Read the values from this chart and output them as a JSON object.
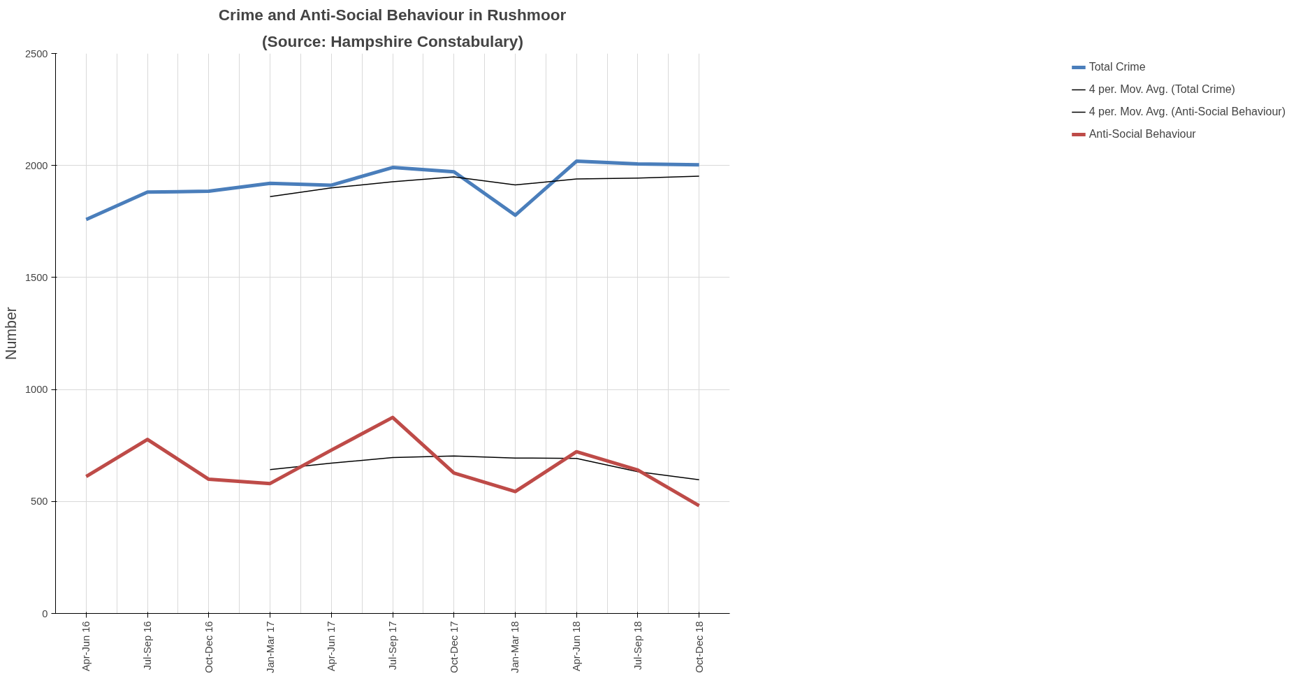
{
  "chart_data": {
    "type": "line",
    "title": "Crime and Anti-Social Behaviour in Rushmoor",
    "subtitle": "(Source: Hampshire Constabulary)",
    "ylabel": "Number",
    "categories": [
      "Apr-Jun 16",
      "Jul-Sep 16",
      "Oct-Dec 16",
      "Jan-Mar 17",
      "Apr-Jun 17",
      "Jul-Sep 17",
      "Oct-Dec 17",
      "Jan-Mar 18",
      "Apr-Jun 18",
      "Jul-Sep 18",
      "Oct-Dec 18"
    ],
    "series": [
      {
        "name": "Total Crime",
        "color": "#4a7ebb",
        "values": [
          1759,
          1881,
          1885,
          1920,
          1912,
          1991,
          1972,
          1778,
          2019,
          2007,
          2003
        ]
      },
      {
        "name": "4 per. Mov. Avg. (Total Crime)",
        "color": "#000000",
        "values": [
          null,
          null,
          null,
          1861,
          1900,
          1927,
          1949,
          1913,
          1940,
          1944,
          1952
        ]
      },
      {
        "name": "4 per. Mov. Avg. (Anti-Social Behaviour)",
        "color": "#000000",
        "values": [
          null,
          null,
          null,
          642,
          671,
          696,
          703,
          694,
          692,
          633,
          597
        ]
      },
      {
        "name": "Anti-Social Behaviour",
        "color": "#be4b48",
        "values": [
          611,
          777,
          599,
          580,
          729,
          875,
          627,
          544,
          722,
          640,
          481
        ]
      }
    ],
    "ylim": [
      0,
      2500
    ],
    "yticks": [
      0,
      500,
      1000,
      1500,
      2000,
      2500
    ],
    "grid": true,
    "legend": "right"
  }
}
